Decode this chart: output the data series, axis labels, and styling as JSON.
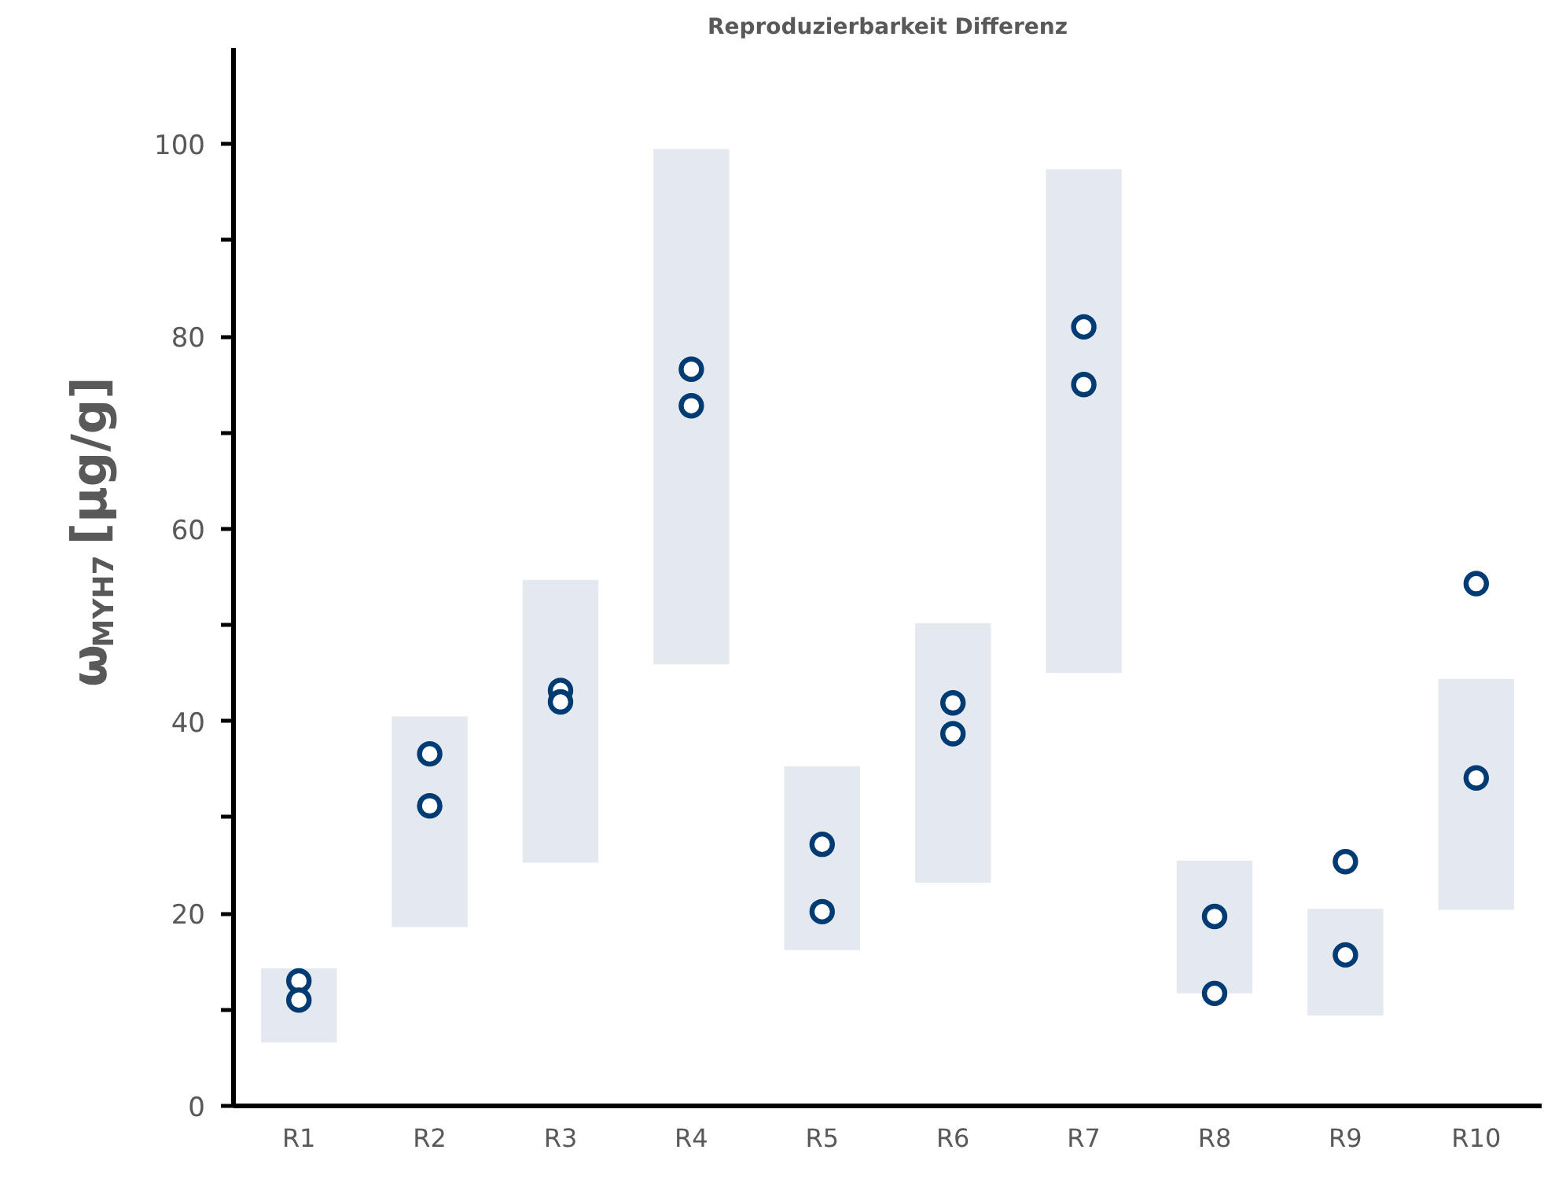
{
  "chart_data": {
    "type": "bar",
    "title": "Reproduzierbarkeit Differenz",
    "ylabel": "ω$_{MYH7}$ [µg/g]",
    "categories": [
      "R1",
      "R2",
      "R3",
      "R4",
      "R5",
      "R6",
      "R7",
      "R8",
      "R9",
      "R10"
    ],
    "ylim": [
      0,
      110
    ],
    "yticks": [
      0,
      {
        "value": 10,
        "label": null
      },
      20,
      {
        "value": 30,
        "label": null
      },
      40,
      {
        "value": 50,
        "label": null
      },
      60,
      {
        "value": 70,
        "label": null
      },
      80,
      {
        "value": 90,
        "label": null
      },
      100
    ],
    "grid": false,
    "series": [
      {
        "color": "#e4e9f0",
        "base": [
          6.6,
          18.6,
          25.3,
          45.9,
          16.2,
          23.2,
          45.0,
          11.7,
          9.4,
          20.4
        ],
        "values": [
          7.7,
          21.9,
          29.4,
          53.6,
          19.1,
          27.0,
          52.4,
          13.8,
          11.1,
          24.0
        ]
      },
      {
        "type": "scatter",
        "color": "#003b73",
        "marker": "circle",
        "values": [
          13.0,
          36.6,
          43.2,
          76.6,
          27.2,
          41.9,
          81.0,
          19.7,
          25.4,
          54.3
        ]
      },
      {
        "type": "scatter",
        "color": "#003b73",
        "marker": "circle",
        "values": [
          11.0,
          31.2,
          42.0,
          72.8,
          20.2,
          38.7,
          75.0,
          11.7,
          15.7,
          34.1
        ]
      }
    ]
  }
}
